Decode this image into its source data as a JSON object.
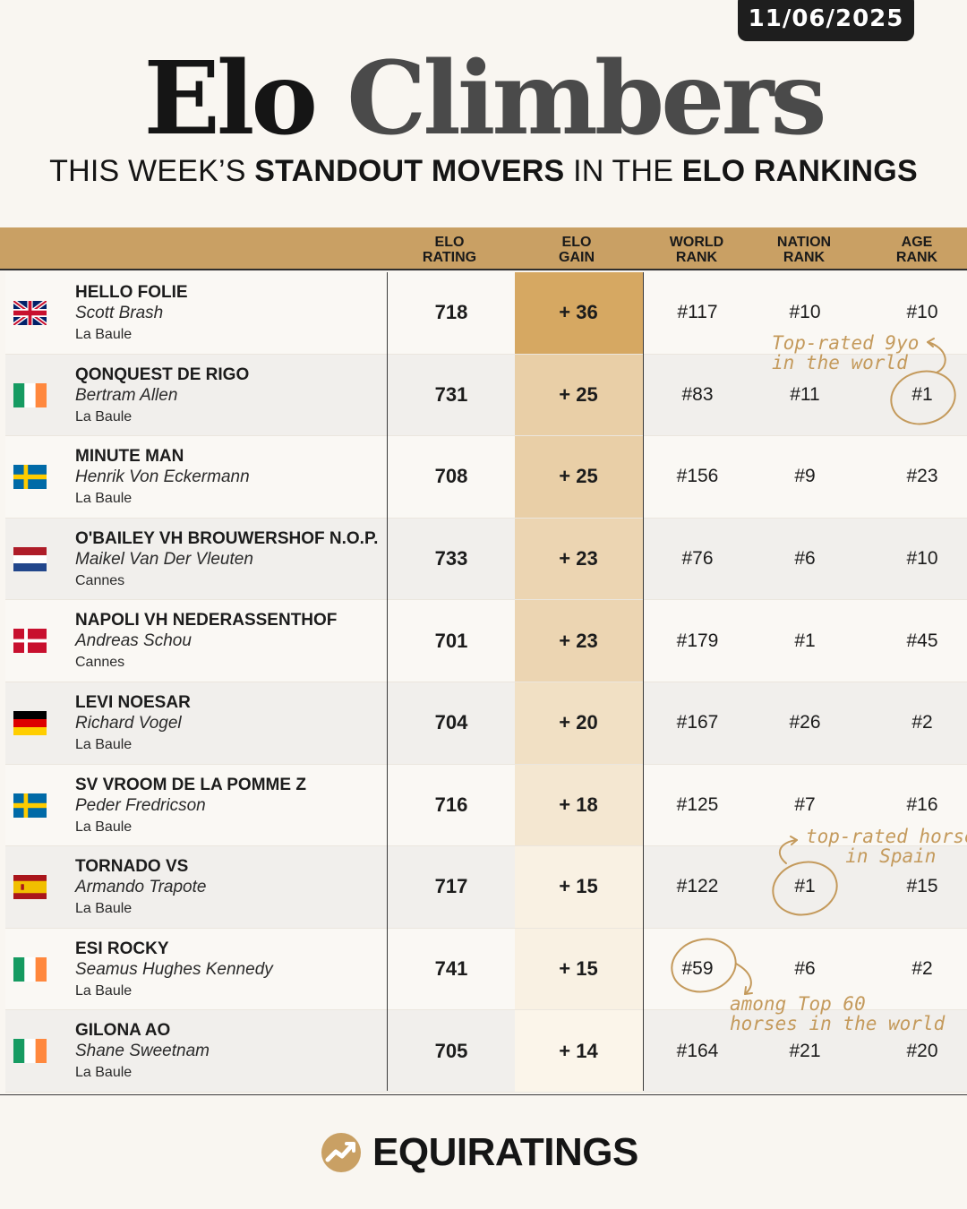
{
  "date": "11/06/2025",
  "title": {
    "word1": "Elo",
    "word2": "Climbers"
  },
  "subtitle": {
    "p1": "THIS WEEK’S ",
    "b1": "STANDOUT MOVERS",
    "p2": " IN THE ",
    "b2": "ELO RANKINGS"
  },
  "columns": {
    "elo_rating": {
      "l1": "ELO",
      "l2": "RATING"
    },
    "elo_gain": {
      "l1": "ELO",
      "l2": "GAIN"
    },
    "world_rank": {
      "l1": "WORLD",
      "l2": "RANK"
    },
    "nation_rank": {
      "l1": "NATION",
      "l2": "RANK"
    },
    "age_rank": {
      "l1": "AGE",
      "l2": "RANK"
    }
  },
  "rows": [
    {
      "flag": "uk-flag-icon",
      "horse": "HELLO FOLIE",
      "rider": "Scott Brash",
      "event": "La Baule",
      "elo": "718",
      "gain": "+ 36",
      "gain_fill": 1.0,
      "world": "#117",
      "nation": "#10",
      "age": "#10"
    },
    {
      "flag": "ireland-flag-icon",
      "horse": "QONQUEST DE RIGO",
      "rider": "Bertram Allen",
      "event": "La Baule",
      "elo": "731",
      "gain": "+ 25",
      "gain_fill": 0.69,
      "world": "#83",
      "nation": "#11",
      "age": "#1"
    },
    {
      "flag": "sweden-flag-icon",
      "horse": "MINUTE MAN",
      "rider": "Henrik Von Eckermann",
      "event": "La Baule",
      "elo": "708",
      "gain": "+ 25",
      "gain_fill": 0.69,
      "world": "#156",
      "nation": "#9",
      "age": "#23"
    },
    {
      "flag": "netherlands-flag-icon",
      "horse": "O'BAILEY VH BROUWERSHOF N.O.P.",
      "rider": "Maikel Van Der Vleuten",
      "event": "Cannes",
      "elo": "733",
      "gain": "+ 23",
      "gain_fill": 0.64,
      "world": "#76",
      "nation": "#6",
      "age": "#10"
    },
    {
      "flag": "denmark-flag-icon",
      "horse": "NAPOLI VH NEDERASSENTHOF",
      "rider": "Andreas Schou",
      "event": "Cannes",
      "elo": "701",
      "gain": "+ 23",
      "gain_fill": 0.64,
      "world": "#179",
      "nation": "#1",
      "age": "#45"
    },
    {
      "flag": "germany-flag-icon",
      "horse": "LEVI NOESAR",
      "rider": "Richard Vogel",
      "event": "La Baule",
      "elo": "704",
      "gain": "+ 20",
      "gain_fill": 0.56,
      "world": "#167",
      "nation": "#26",
      "age": "#2"
    },
    {
      "flag": "sweden-flag-icon",
      "horse": "SV VROOM DE LA POMME Z",
      "rider": "Peder Fredricson",
      "event": "La Baule",
      "elo": "716",
      "gain": "+ 18",
      "gain_fill": 0.5,
      "world": "#125",
      "nation": "#7",
      "age": "#16"
    },
    {
      "flag": "spain-flag-icon",
      "horse": "TORNADO VS",
      "rider": "Armando Trapote",
      "event": "La Baule",
      "elo": "717",
      "gain": "+ 15",
      "gain_fill": 0.42,
      "world": "#122",
      "nation": "#1",
      "age": "#15"
    },
    {
      "flag": "ireland-flag-icon",
      "horse": "ESI ROCKY",
      "rider": "Seamus Hughes Kennedy",
      "event": "La Baule",
      "elo": "741",
      "gain": "+ 15",
      "gain_fill": 0.42,
      "world": "#59",
      "nation": "#6",
      "age": "#2"
    },
    {
      "flag": "ireland-flag-icon",
      "horse": "GILONA AO",
      "rider": "Shane Sweetnam",
      "event": "La Baule",
      "elo": "705",
      "gain": "+ 14",
      "gain_fill": 0.39,
      "world": "#164",
      "nation": "#21",
      "age": "#20"
    }
  ],
  "annotations": {
    "a1": {
      "l1": "Top-rated 9yo",
      "l2": "in the world"
    },
    "a2": {
      "l1": "top-rated horse",
      "l2": "in Spain"
    },
    "a3": {
      "l1": "among Top 60",
      "l2": "horses in the world"
    }
  },
  "colors": {
    "accent": "#c9a064",
    "annotation": "#c49a5c",
    "gain_max": "#d6a862",
    "gain_min": "#fbf5ea"
  },
  "logo": {
    "text": "EQUIRATINGS",
    "icon": "equiratings-logo-icon"
  }
}
